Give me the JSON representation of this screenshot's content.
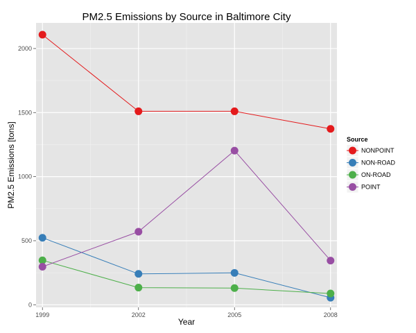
{
  "chart_data": {
    "type": "line",
    "title": "PM2.5 Emissions by Source in Baltimore City",
    "xlabel": "Year",
    "ylabel": "PM2.5 Emissions [tons]",
    "x": [
      1999,
      2002,
      2005,
      2008
    ],
    "x_tick_labels": [
      "1999",
      "2002",
      "2005",
      "2008"
    ],
    "y_ticks": [
      0,
      500,
      1000,
      1500,
      2000
    ],
    "y_tick_labels": [
      "0",
      "500",
      "1000",
      "1500",
      "2000"
    ],
    "xlim": [
      1998.8,
      2008.2
    ],
    "ylim": [
      -20,
      2200
    ],
    "grid": true,
    "legend_title": "Source",
    "legend_position": "right",
    "series": [
      {
        "name": "NONPOINT",
        "color": "#e41a1c",
        "values": [
          2108,
          1510,
          1510,
          1373
        ]
      },
      {
        "name": "NON-ROAD",
        "color": "#377eb8",
        "values": [
          523,
          241,
          249,
          55
        ]
      },
      {
        "name": "ON-ROAD",
        "color": "#4daf4a",
        "values": [
          347,
          134,
          130,
          88
        ]
      },
      {
        "name": "POINT",
        "color": "#984ea3",
        "values": [
          297,
          570,
          1203,
          345
        ]
      }
    ]
  }
}
